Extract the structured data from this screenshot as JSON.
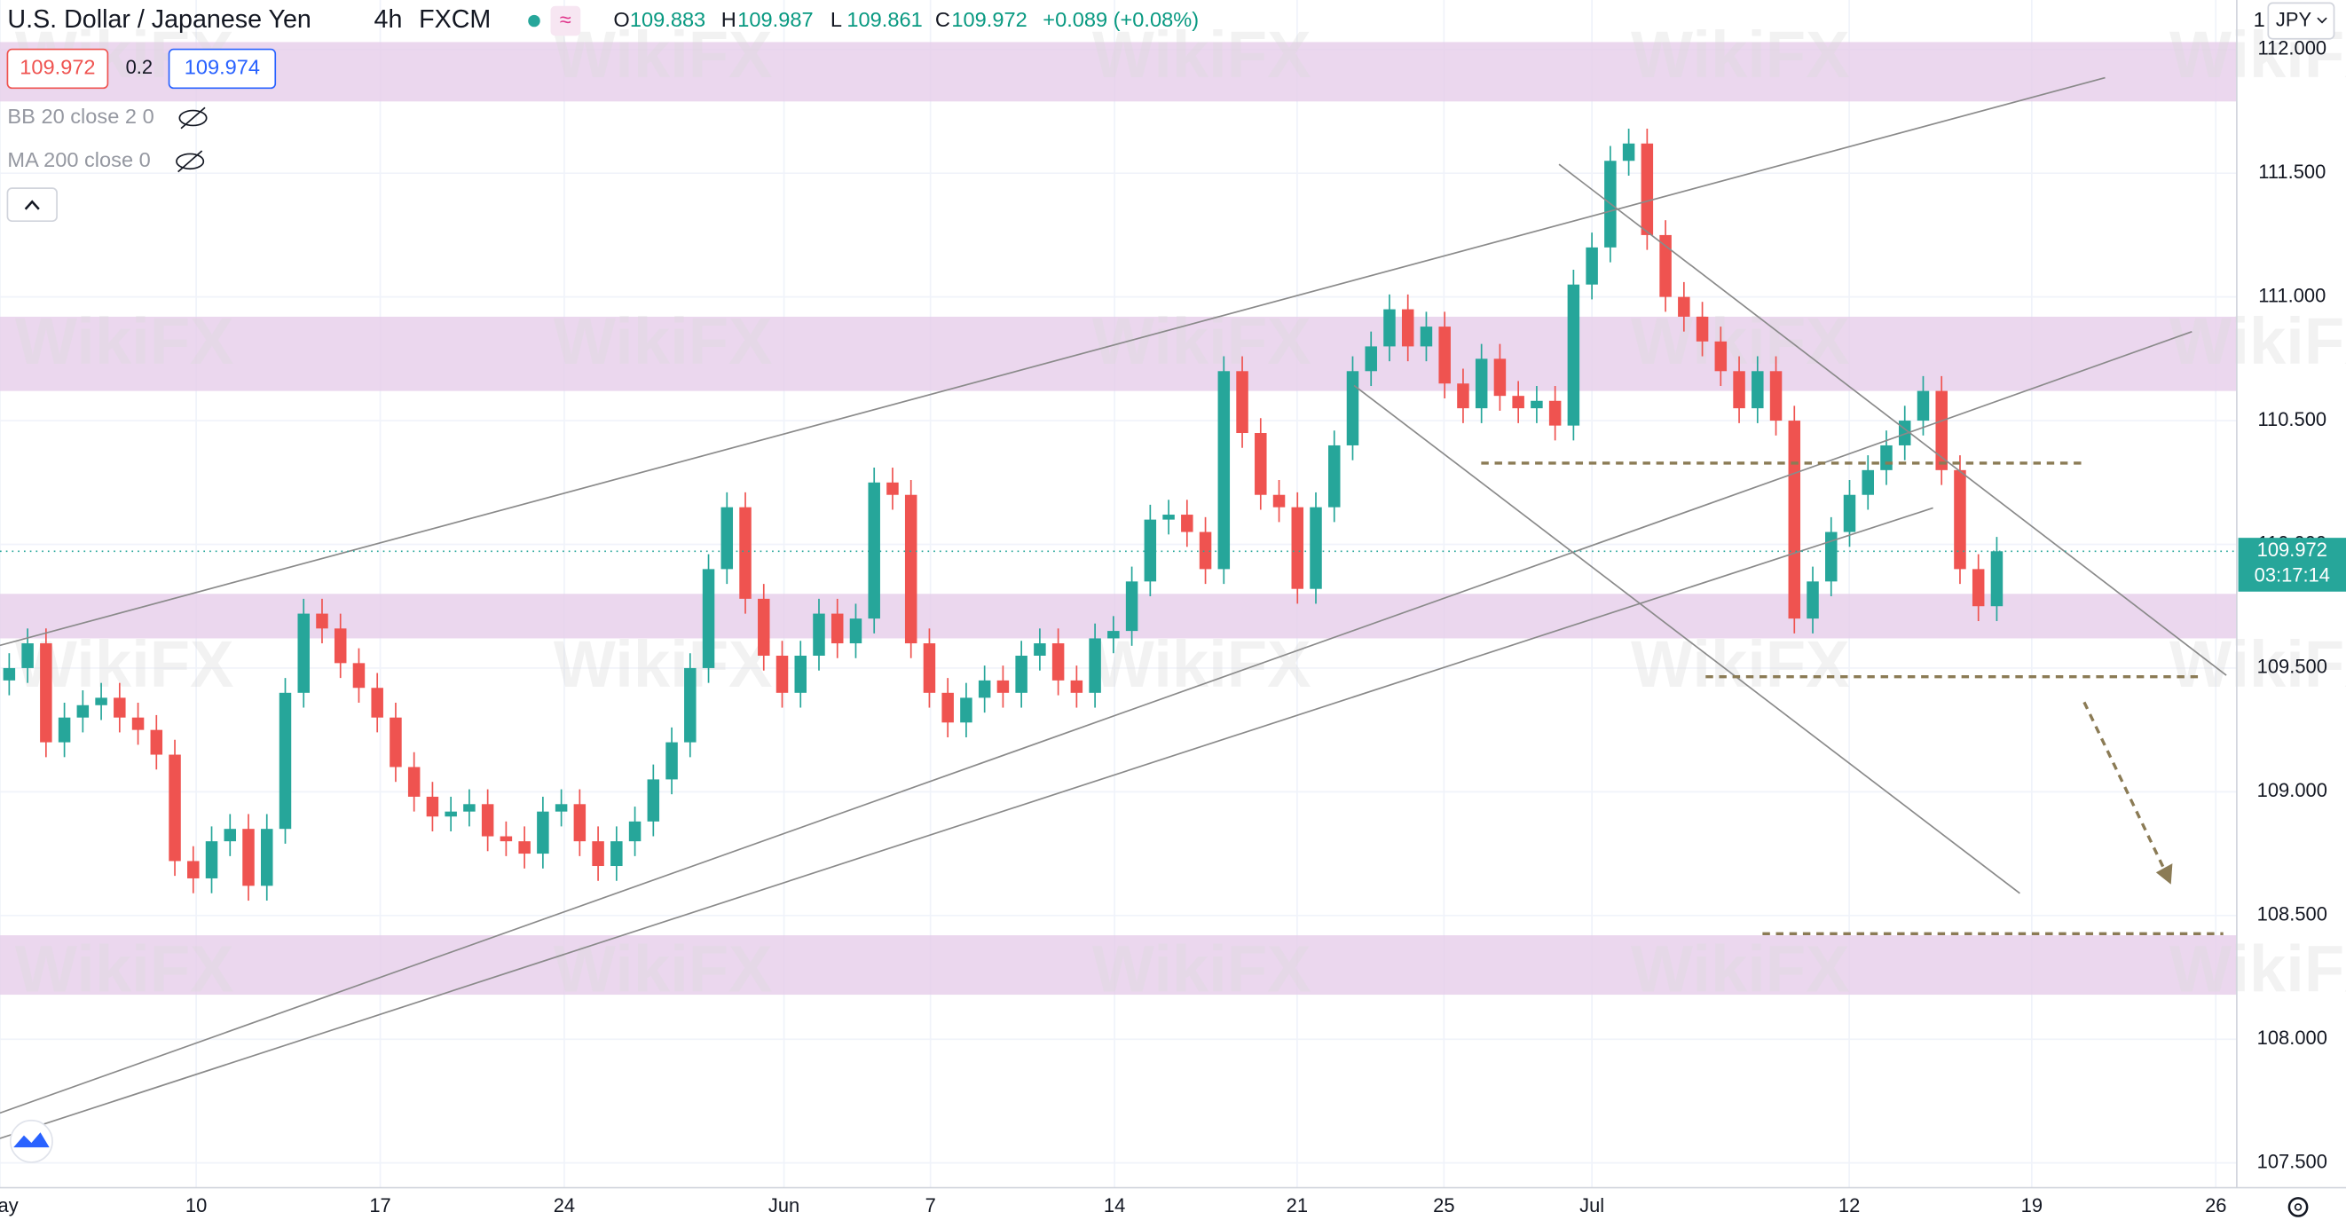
{
  "header": {
    "symbol": "U.S. Dollar / Japanese Yen",
    "interval": "4h",
    "source": "FXCM",
    "ohlc_labels": [
      "O",
      "H",
      "L",
      "C"
    ],
    "ohlc_values": [
      "109.883",
      "109.987",
      "109.861",
      "109.972"
    ],
    "change": "+0.089 (+0.08%)",
    "sell_price": "109.972",
    "spread": "0.2",
    "buy_price": "109.974",
    "indicators": [
      "BB 20 close 2 0",
      "MA 200 close 0"
    ],
    "currency": "JPY",
    "scale_mark": "1",
    "countdown": "03:17:14",
    "watermark": "WikiFX"
  },
  "chart_data": {
    "type": "candlestick",
    "up_color": "#26a69a",
    "down_color": "#ef5350",
    "grid": true,
    "xlim": [
      0,
      60.77
    ],
    "ylim": [
      107.4,
      112.2
    ],
    "xticks": [
      {
        "value": 0,
        "label": "May"
      },
      {
        "value": 5.33,
        "label": "10"
      },
      {
        "value": 10.33,
        "label": "17"
      },
      {
        "value": 15.33,
        "label": "24"
      },
      {
        "value": 21.3,
        "label": "Jun"
      },
      {
        "value": 25.28,
        "label": "7"
      },
      {
        "value": 30.28,
        "label": "14"
      },
      {
        "value": 35.24,
        "label": "21"
      },
      {
        "value": 39.23,
        "label": "25"
      },
      {
        "value": 43.25,
        "label": "Jul"
      },
      {
        "value": 50.24,
        "label": "12"
      },
      {
        "value": 55.2,
        "label": "19"
      },
      {
        "value": 60.2,
        "label": "26"
      }
    ],
    "yticks": [
      {
        "value": 107.5,
        "label": "107.500"
      },
      {
        "value": 108,
        "label": "108.000"
      },
      {
        "value": 108.5,
        "label": "108.500"
      },
      {
        "value": 109,
        "label": "109.000"
      },
      {
        "value": 109.5,
        "label": "109.500"
      },
      {
        "value": 110,
        "label": "110.000"
      },
      {
        "value": 110.5,
        "label": "110.500"
      },
      {
        "value": 111,
        "label": "111.000"
      },
      {
        "value": 111.5,
        "label": "111.500"
      },
      {
        "value": 112,
        "label": "112.000"
      }
    ],
    "zones": [
      [
        111.79,
        112.03
      ],
      [
        110.62,
        110.92
      ],
      [
        109.62,
        109.8
      ],
      [
        108.18,
        108.42
      ]
    ],
    "zone_color": "#e6cdea",
    "last_price": 109.972,
    "last_price_label": "109.972",
    "last_color": "#26a69a",
    "x": [
      0.25,
      0.75,
      1.25,
      1.75,
      2.25,
      2.75,
      3.25,
      3.75,
      4.25,
      4.75,
      5.25,
      5.75,
      6.25,
      6.75,
      7.25,
      7.75,
      8.25,
      8.75,
      9.25,
      9.75,
      10.25,
      10.75,
      11.25,
      11.75,
      12.25,
      12.75,
      13.25,
      13.75,
      14.25,
      14.75,
      15.25,
      15.75,
      16.25,
      16.75,
      17.25,
      17.75,
      18.25,
      18.75,
      19.25,
      19.75,
      20.25,
      20.75,
      21.25,
      21.75,
      22.25,
      22.75,
      23.25,
      23.75,
      24.25,
      24.75,
      25.25,
      25.75,
      26.25,
      26.75,
      27.25,
      27.75,
      28.25,
      28.75,
      29.25,
      29.75,
      30.25,
      30.75,
      31.25,
      31.75,
      32.25,
      32.75,
      33.25,
      33.75,
      34.25,
      34.75,
      35.25,
      35.75,
      36.25,
      36.75,
      37.25,
      37.75,
      38.25,
      38.75,
      39.25,
      39.75,
      40.25,
      40.75,
      41.25,
      41.75,
      42.25,
      42.75,
      43.25,
      43.75,
      44.25,
      44.75,
      45.25,
      45.75,
      46.25,
      46.75,
      47.25,
      47.75,
      48.25,
      48.75,
      49.25,
      49.75,
      50.25,
      50.75,
      51.25,
      51.75,
      52.25,
      52.75,
      53.25,
      53.75,
      54.25
    ],
    "ohlc": [
      [
        109.45,
        109.56,
        109.39,
        109.5
      ],
      [
        109.5,
        109.66,
        109.44,
        109.6
      ],
      [
        109.6,
        109.66,
        109.14,
        109.2
      ],
      [
        109.2,
        109.36,
        109.14,
        109.3
      ],
      [
        109.3,
        109.41,
        109.24,
        109.35
      ],
      [
        109.35,
        109.44,
        109.29,
        109.38
      ],
      [
        109.38,
        109.44,
        109.24,
        109.3
      ],
      [
        109.3,
        109.36,
        109.19,
        109.25
      ],
      [
        109.25,
        109.31,
        109.09,
        109.15
      ],
      [
        109.15,
        109.21,
        108.66,
        108.72
      ],
      [
        108.72,
        108.78,
        108.59,
        108.65
      ],
      [
        108.65,
        108.86,
        108.59,
        108.8
      ],
      [
        108.8,
        108.91,
        108.74,
        108.85
      ],
      [
        108.85,
        108.91,
        108.56,
        108.62
      ],
      [
        108.62,
        108.91,
        108.56,
        108.85
      ],
      [
        108.85,
        109.46,
        108.79,
        109.4
      ],
      [
        109.4,
        109.78,
        109.34,
        109.72
      ],
      [
        109.72,
        109.78,
        109.6,
        109.66
      ],
      [
        109.66,
        109.72,
        109.46,
        109.52
      ],
      [
        109.52,
        109.58,
        109.36,
        109.42
      ],
      [
        109.42,
        109.48,
        109.24,
        109.3
      ],
      [
        109.3,
        109.36,
        109.04,
        109.1
      ],
      [
        109.1,
        109.16,
        108.92,
        108.98
      ],
      [
        108.98,
        109.04,
        108.84,
        108.9
      ],
      [
        108.9,
        108.98,
        108.84,
        108.92
      ],
      [
        108.92,
        109.01,
        108.86,
        108.95
      ],
      [
        108.95,
        109.01,
        108.76,
        108.82
      ],
      [
        108.82,
        108.88,
        108.74,
        108.8
      ],
      [
        108.8,
        108.86,
        108.69,
        108.75
      ],
      [
        108.75,
        108.98,
        108.69,
        108.92
      ],
      [
        108.92,
        109.01,
        108.86,
        108.95
      ],
      [
        108.95,
        109.01,
        108.74,
        108.8
      ],
      [
        108.8,
        108.86,
        108.64,
        108.7
      ],
      [
        108.7,
        108.86,
        108.64,
        108.8
      ],
      [
        108.8,
        108.94,
        108.74,
        108.88
      ],
      [
        108.88,
        109.11,
        108.82,
        109.05
      ],
      [
        109.05,
        109.26,
        108.99,
        109.2
      ],
      [
        109.2,
        109.56,
        109.14,
        109.5
      ],
      [
        109.5,
        109.96,
        109.44,
        109.9
      ],
      [
        109.9,
        110.21,
        109.84,
        110.15
      ],
      [
        110.15,
        110.21,
        109.72,
        109.78
      ],
      [
        109.78,
        109.84,
        109.49,
        109.55
      ],
      [
        109.55,
        109.61,
        109.34,
        109.4
      ],
      [
        109.4,
        109.61,
        109.34,
        109.55
      ],
      [
        109.55,
        109.78,
        109.49,
        109.72
      ],
      [
        109.72,
        109.78,
        109.54,
        109.6
      ],
      [
        109.6,
        109.76,
        109.54,
        109.7
      ],
      [
        109.7,
        110.31,
        109.64,
        110.25
      ],
      [
        110.25,
        110.31,
        110.14,
        110.2
      ],
      [
        110.2,
        110.26,
        109.54,
        109.6
      ],
      [
        109.6,
        109.66,
        109.34,
        109.4
      ],
      [
        109.4,
        109.46,
        109.22,
        109.28
      ],
      [
        109.28,
        109.44,
        109.22,
        109.38
      ],
      [
        109.38,
        109.51,
        109.32,
        109.45
      ],
      [
        109.45,
        109.51,
        109.34,
        109.4
      ],
      [
        109.4,
        109.61,
        109.34,
        109.55
      ],
      [
        109.55,
        109.66,
        109.49,
        109.6
      ],
      [
        109.6,
        109.66,
        109.39,
        109.45
      ],
      [
        109.45,
        109.51,
        109.34,
        109.4
      ],
      [
        109.4,
        109.68,
        109.34,
        109.62
      ],
      [
        109.62,
        109.71,
        109.56,
        109.65
      ],
      [
        109.65,
        109.91,
        109.59,
        109.85
      ],
      [
        109.85,
        110.16,
        109.79,
        110.1
      ],
      [
        110.1,
        110.18,
        110.04,
        110.12
      ],
      [
        110.12,
        110.18,
        109.99,
        110.05
      ],
      [
        110.05,
        110.11,
        109.84,
        109.9
      ],
      [
        109.9,
        110.76,
        109.84,
        110.7
      ],
      [
        110.7,
        110.76,
        110.39,
        110.45
      ],
      [
        110.45,
        110.51,
        110.14,
        110.2
      ],
      [
        110.2,
        110.26,
        110.09,
        110.15
      ],
      [
        110.15,
        110.21,
        109.76,
        109.82
      ],
      [
        109.82,
        110.21,
        109.76,
        110.15
      ],
      [
        110.15,
        110.46,
        110.09,
        110.4
      ],
      [
        110.4,
        110.76,
        110.34,
        110.7
      ],
      [
        110.7,
        110.86,
        110.64,
        110.8
      ],
      [
        110.8,
        111.01,
        110.74,
        110.95
      ],
      [
        110.95,
        111.01,
        110.74,
        110.8
      ],
      [
        110.8,
        110.94,
        110.74,
        110.88
      ],
      [
        110.88,
        110.94,
        110.59,
        110.65
      ],
      [
        110.65,
        110.71,
        110.49,
        110.55
      ],
      [
        110.55,
        110.81,
        110.49,
        110.75
      ],
      [
        110.75,
        110.81,
        110.54,
        110.6
      ],
      [
        110.6,
        110.66,
        110.49,
        110.55
      ],
      [
        110.55,
        110.64,
        110.49,
        110.58
      ],
      [
        110.58,
        110.64,
        110.42,
        110.48
      ],
      [
        110.48,
        111.11,
        110.42,
        111.05
      ],
      [
        111.05,
        111.26,
        110.99,
        111.2
      ],
      [
        111.2,
        111.61,
        111.14,
        111.55
      ],
      [
        111.55,
        111.68,
        111.49,
        111.62
      ],
      [
        111.62,
        111.68,
        111.19,
        111.25
      ],
      [
        111.25,
        111.31,
        110.94,
        111.0
      ],
      [
        111.0,
        111.06,
        110.86,
        110.92
      ],
      [
        110.92,
        110.98,
        110.76,
        110.82
      ],
      [
        110.82,
        110.88,
        110.64,
        110.7
      ],
      [
        110.7,
        110.76,
        110.49,
        110.55
      ],
      [
        110.55,
        110.76,
        110.49,
        110.7
      ],
      [
        110.7,
        110.76,
        110.44,
        110.5
      ],
      [
        110.5,
        110.56,
        109.64,
        109.7
      ],
      [
        109.7,
        109.91,
        109.64,
        109.85
      ],
      [
        109.85,
        110.11,
        109.79,
        110.05
      ],
      [
        110.05,
        110.26,
        109.99,
        110.2
      ],
      [
        110.2,
        110.36,
        110.14,
        110.3
      ],
      [
        110.3,
        110.46,
        110.24,
        110.4
      ],
      [
        110.4,
        110.56,
        110.34,
        110.5
      ],
      [
        110.5,
        110.68,
        110.44,
        110.62
      ],
      [
        110.62,
        110.68,
        110.24,
        110.3
      ],
      [
        110.3,
        110.36,
        109.84,
        109.9
      ],
      [
        109.9,
        109.96,
        109.69,
        109.75
      ],
      [
        109.75,
        110.03,
        109.69,
        109.972
      ]
    ]
  }
}
